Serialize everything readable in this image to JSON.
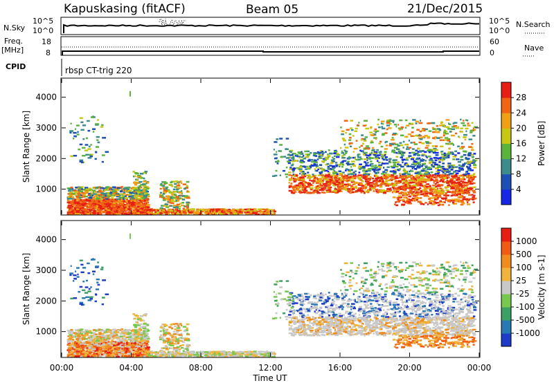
{
  "header": {
    "station": "Kapuskasing (fitACF)",
    "beam": "Beam 05",
    "date": "21/Dec/2015"
  },
  "top_panels": {
    "nsky_label": "N.Sky",
    "nsearch_label": "N.Search",
    "freq_label_1": "Freq.",
    "freq_label_2": "[MHz]",
    "nave_label": "Nave",
    "cpid_label": "CPID",
    "cpid_value": "rbsp CT-trig 220",
    "left_ticks_nsky": [
      "10^5",
      "10^0"
    ],
    "right_ticks_nsky": [
      "10^5",
      "10^0"
    ],
    "left_ticks_freq": [
      "18",
      "8"
    ],
    "right_ticks_nave": [
      "60",
      "0"
    ]
  },
  "chart_data": [
    {
      "type": "heatmap",
      "name": "power",
      "ylabel": "Slant Range [km]",
      "xlabel": "",
      "ylim": [
        180,
        4600
      ],
      "xlim": [
        0,
        24
      ],
      "ytick_labels": [
        "1000",
        "2000",
        "3000",
        "4000"
      ],
      "yticks": [
        1000,
        2000,
        3000,
        4000
      ],
      "colorbar": {
        "label": "Power [dB]",
        "tick_labels": [
          "4",
          "8",
          "12",
          "16",
          "20",
          "24",
          "28"
        ],
        "colors": [
          "#1428e6",
          "#1e4fb4",
          "#3c8c8c",
          "#5ab43c",
          "#c8c814",
          "#f0a014",
          "#f06414",
          "#e61e14"
        ]
      }
    },
    {
      "type": "heatmap",
      "name": "velocity",
      "ylabel": "Slant Range [km]",
      "xlabel": "Time UT",
      "ylim": [
        180,
        4600
      ],
      "xlim": [
        0,
        24
      ],
      "ytick_labels": [
        "1000",
        "2000",
        "3000",
        "4000"
      ],
      "yticks": [
        1000,
        2000,
        3000,
        4000
      ],
      "xtick_labels": [
        "00:00",
        "04:00",
        "08:00",
        "12:00",
        "16:00",
        "20:00",
        "00:00"
      ],
      "xticks": [
        0,
        4,
        8,
        12,
        16,
        20,
        24
      ],
      "colorbar": {
        "label": "Velocity [m s-1]",
        "tick_labels": [
          "1000",
          "500",
          "100",
          "25",
          "-25",
          "-100",
          "-500",
          "-1000"
        ],
        "colors": [
          "#1e3cc8",
          "#2878b4",
          "#3ca064",
          "#78c850",
          "#c8c8c8",
          "#f0b43c",
          "#f08c1e",
          "#f05a14",
          "#e61e14"
        ]
      }
    }
  ]
}
